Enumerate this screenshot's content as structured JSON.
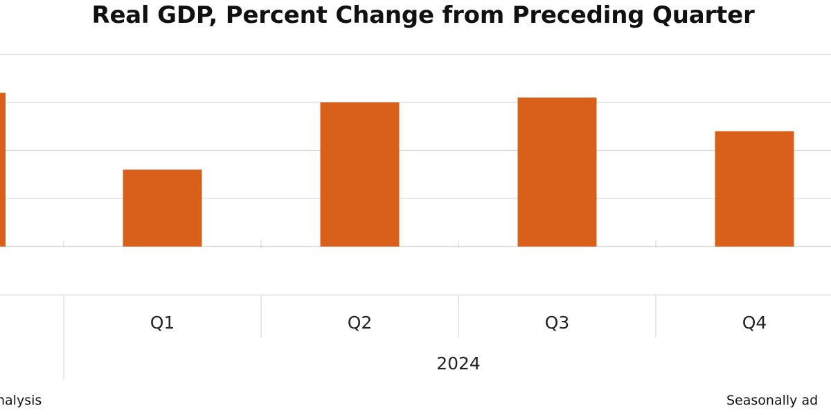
{
  "chart_data": {
    "type": "bar",
    "title": "Real GDP, Percent Change from Preceding Quarter",
    "xlabel": "",
    "ylabel": "",
    "categories": [
      "Q1",
      "Q2",
      "Q3",
      "Q4"
    ],
    "group_label": "2024",
    "series": [
      {
        "values": [
          1.6,
          3.0,
          3.1,
          2.4
        ]
      }
    ],
    "partial_previous_value": 3.2,
    "ylim": [
      -1.0,
      5.0
    ],
    "gridlines": [
      0,
      1,
      2,
      3,
      4
    ],
    "grid": true,
    "legend": "none",
    "bar_color": "#d9601a"
  },
  "footnotes": {
    "source_fragment": "nalysis",
    "adjustment_fragment": "Seasonally ad"
  }
}
